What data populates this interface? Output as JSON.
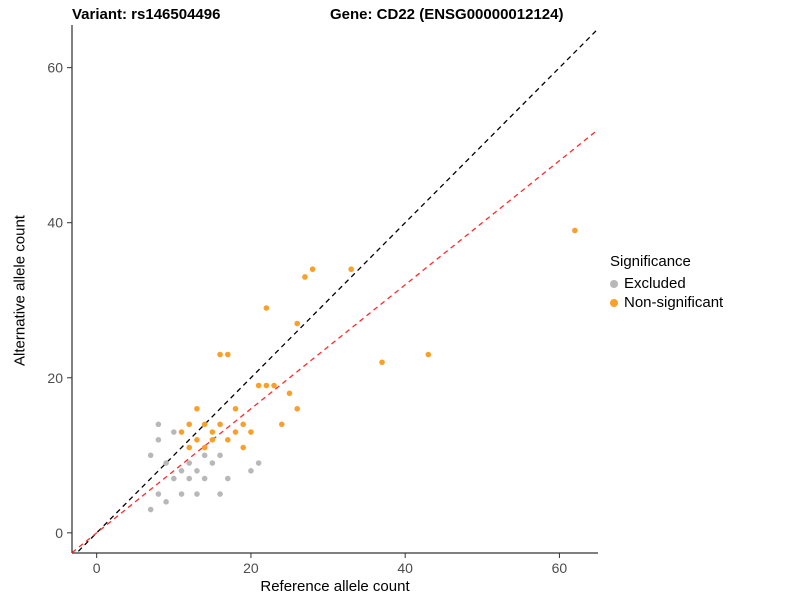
{
  "header": {
    "variant_title": "Variant: rs146504496",
    "gene_title": "Gene: CD22 (ENSG00000012124)"
  },
  "legend": {
    "title": "Significance",
    "items": [
      {
        "label": "Excluded",
        "color": "#b8b8b8"
      },
      {
        "label": "Non-significant",
        "color": "#f9a02b"
      }
    ]
  },
  "chart_data": {
    "type": "scatter",
    "title": "",
    "xlabel": "Reference allele count",
    "ylabel": "Alternative allele count",
    "xlim": [
      -3.2,
      65
    ],
    "ylim": [
      -2.6,
      65.5
    ],
    "x_ticks": [
      0,
      20,
      40,
      60
    ],
    "y_ticks": [
      0,
      20,
      40,
      60
    ],
    "grid": false,
    "legend_position": "right",
    "lines": [
      {
        "name": "identity-line",
        "slope": 1,
        "intercept": 0,
        "color": "#000000",
        "dash": "5 4"
      },
      {
        "name": "fit-line",
        "slope": 0.8,
        "intercept": 0,
        "color": "#ff2a2a",
        "dash": "5 4"
      }
    ],
    "series": [
      {
        "name": "Excluded",
        "color": "#b8b8b8",
        "points": [
          [
            7,
            10
          ],
          [
            7,
            3
          ],
          [
            8,
            14
          ],
          [
            8,
            12
          ],
          [
            8,
            5
          ],
          [
            9,
            9
          ],
          [
            9,
            4
          ],
          [
            10,
            13
          ],
          [
            10,
            7
          ],
          [
            11,
            8
          ],
          [
            11,
            5
          ],
          [
            12,
            9
          ],
          [
            12,
            7
          ],
          [
            13,
            8
          ],
          [
            13,
            5
          ],
          [
            14,
            10
          ],
          [
            14,
            7
          ],
          [
            15,
            9
          ],
          [
            16,
            10
          ],
          [
            16,
            5
          ],
          [
            17,
            7
          ],
          [
            20,
            8
          ],
          [
            21,
            9
          ]
        ]
      },
      {
        "name": "Non-significant",
        "color": "#f9a02b",
        "points": [
          [
            11,
            13
          ],
          [
            12,
            14
          ],
          [
            12,
            11
          ],
          [
            13,
            12
          ],
          [
            13,
            16
          ],
          [
            14,
            14
          ],
          [
            14,
            11
          ],
          [
            15,
            13
          ],
          [
            15,
            12
          ],
          [
            16,
            23
          ],
          [
            16,
            14
          ],
          [
            17,
            23
          ],
          [
            17,
            12
          ],
          [
            18,
            16
          ],
          [
            18,
            13
          ],
          [
            19,
            14
          ],
          [
            19,
            11
          ],
          [
            20,
            13
          ],
          [
            21,
            19
          ],
          [
            22,
            29
          ],
          [
            22,
            19
          ],
          [
            23,
            19
          ],
          [
            24,
            14
          ],
          [
            25,
            18
          ],
          [
            26,
            27
          ],
          [
            26,
            16
          ],
          [
            27,
            33
          ],
          [
            28,
            34
          ],
          [
            33,
            34
          ],
          [
            37,
            22
          ],
          [
            43,
            23
          ],
          [
            62,
            39
          ]
        ]
      }
    ]
  }
}
